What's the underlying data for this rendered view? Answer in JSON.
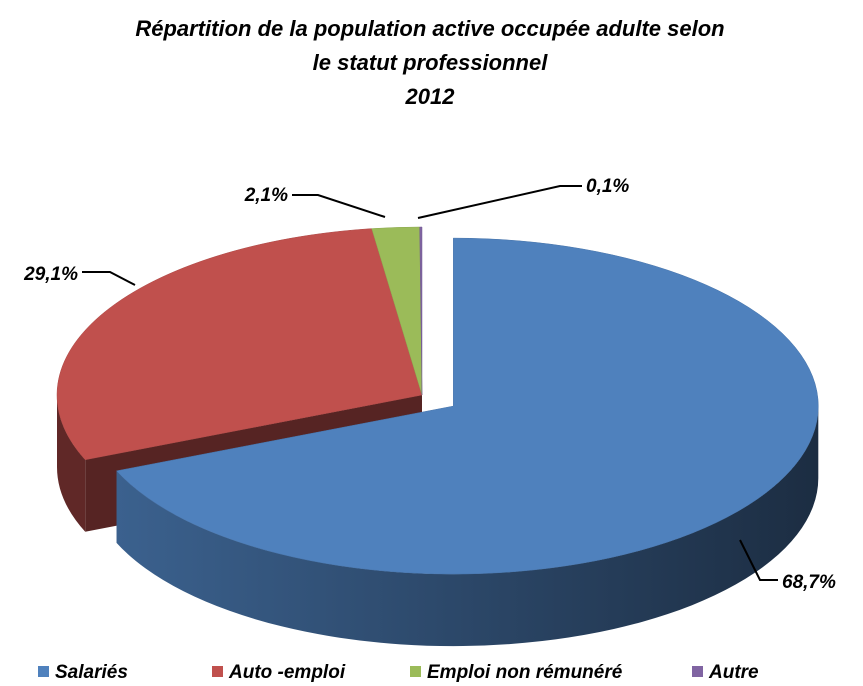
{
  "chart_data": {
    "type": "pie",
    "title": [
      "Répartition de la population active occupée adulte selon",
      "le statut professionnel",
      "2012"
    ],
    "categories": [
      "Salariés",
      "Auto -emploi",
      "Emploi non rémunéré",
      "Autre"
    ],
    "values": [
      68.7,
      29.1,
      2.1,
      0.1
    ],
    "value_labels": [
      "68,7%",
      "29,1%",
      "2,1%",
      "0,1%"
    ],
    "colors": [
      "#4f81bd",
      "#c0504d",
      "#9bbb59",
      "#8064a2"
    ],
    "legend": "bottom"
  }
}
